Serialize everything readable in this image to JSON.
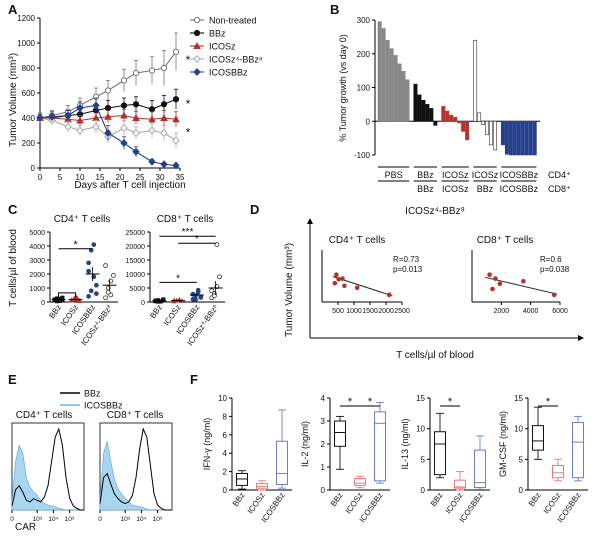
{
  "colors": {
    "nontreated": "#777777",
    "bbz": "#111111",
    "icosz": "#b5312b",
    "icosz4bbz8": "#aaaaaa",
    "icosbbz": "#26408b",
    "icoszLight": "#e87b7b",
    "icosbbzLight": "#6b7fc7",
    "histFill": "#a9d6ee",
    "histLine": "#67b7e3"
  },
  "panelA": {
    "letter": "A",
    "ylabel": "Tumor Volume (mm³)",
    "xlabel": "Days after T cell injection",
    "legend": [
      "Non-treated",
      "BBz",
      "ICOSz",
      "ICOSz⁴-BBz⁸",
      "ICOSBBz"
    ],
    "stars": [
      "*",
      "*",
      "*"
    ]
  },
  "panelB": {
    "letter": "B",
    "ylabel": "% Tumor growth (vs day 0)",
    "groups": [
      {
        "top": "PBS",
        "bottom": ""
      },
      {
        "top": "BBz",
        "bottom": "BBz"
      },
      {
        "top": "ICOSz",
        "bottom": "ICOSz"
      },
      {
        "top": "ICOSz",
        "bottom": "BBz"
      },
      {
        "top": "ICOSBBz",
        "bottom": "ICOSBBz"
      }
    ],
    "rowlabels": {
      "cd4": "CD4⁺",
      "cd8": "CD8⁺"
    }
  },
  "panelC": {
    "letter": "C",
    "ylabel": "T cells/µl of blood",
    "cd4_title": "CD4⁺ T cells",
    "cd8_title": "CD8⁺ T cells",
    "categories": [
      "BBz",
      "ICOSz",
      "ICOSBBz",
      "ICOSz⁴-BBz⁸"
    ],
    "cd4_stars": [
      "*"
    ],
    "cd8_stars": [
      "***",
      "*",
      "*"
    ]
  },
  "panelD": {
    "letter": "D",
    "title": "ICOSz⁴-BBz⁸",
    "ylabel": "Tumor Volume (mm³)",
    "xlabel": "T cells/µl of blood",
    "cd4_title": "CD4⁺ T cells",
    "cd8_title": "CD8⁺ T cells",
    "cd4_stats": {
      "r": "R=0.73",
      "p": "p=0.013"
    },
    "cd8_stats": {
      "r": "R=0.6",
      "p": "p=0.038"
    }
  },
  "panelE": {
    "letter": "E",
    "legend": [
      "BBz",
      "ICOSBBz"
    ],
    "cd4_title": "CD4⁺ T cells",
    "cd8_title": "CD8⁺ T cells",
    "xlabel": "CAR",
    "ticks": [
      "0",
      "10³",
      "10⁴",
      "10⁵"
    ]
  },
  "panelF": {
    "letter": "F",
    "categories": [
      "BBz",
      "ICOSz",
      "ICOSBBz"
    ],
    "stars": [
      "*",
      "*",
      "*",
      "*"
    ]
  },
  "chart_data": [
    {
      "panel": "A",
      "type": "line",
      "xlabel": "Days after T cell injection",
      "ylabel": "Tumor Volume (mm³)",
      "xlim": [
        0,
        35
      ],
      "ylim": [
        0,
        1200
      ],
      "xticks": [
        0,
        5,
        10,
        15,
        20,
        25,
        30,
        35
      ],
      "yticks": [
        0,
        200,
        400,
        600,
        800,
        1000,
        1200
      ],
      "series": [
        {
          "name": "Non-treated",
          "x": [
            0,
            3,
            7,
            10,
            14,
            17,
            21,
            24,
            28,
            31,
            34
          ],
          "y": [
            400,
            420,
            450,
            500,
            570,
            620,
            700,
            760,
            780,
            800,
            930
          ],
          "err": [
            40,
            40,
            50,
            60,
            70,
            80,
            90,
            100,
            110,
            140,
            150
          ]
        },
        {
          "name": "BBz",
          "x": [
            0,
            3,
            7,
            10,
            14,
            17,
            21,
            24,
            28,
            31,
            34
          ],
          "y": [
            400,
            400,
            420,
            430,
            460,
            480,
            500,
            510,
            470,
            510,
            550
          ],
          "err": [
            30,
            30,
            40,
            40,
            50,
            60,
            60,
            60,
            70,
            70,
            80
          ]
        },
        {
          "name": "ICOSz",
          "x": [
            0,
            3,
            7,
            10,
            14,
            17,
            21,
            24,
            28,
            31,
            34
          ],
          "y": [
            400,
            400,
            390,
            380,
            400,
            410,
            420,
            400,
            390,
            400,
            390
          ],
          "err": [
            30,
            30,
            40,
            40,
            40,
            50,
            50,
            50,
            60,
            60,
            60
          ]
        },
        {
          "name": "ICOSz⁴-BBz⁸",
          "x": [
            0,
            3,
            7,
            10,
            14,
            17,
            21,
            24,
            28,
            31,
            34
          ],
          "y": [
            400,
            380,
            330,
            300,
            330,
            250,
            320,
            280,
            300,
            280,
            220
          ],
          "err": [
            30,
            30,
            40,
            40,
            50,
            50,
            60,
            50,
            60,
            60,
            60
          ]
        },
        {
          "name": "ICOSBBz",
          "x": [
            0,
            3,
            7,
            10,
            14,
            17,
            21,
            24,
            28,
            31,
            34
          ],
          "y": [
            400,
            410,
            420,
            480,
            500,
            280,
            200,
            130,
            50,
            30,
            20
          ],
          "err": [
            30,
            40,
            40,
            50,
            60,
            60,
            50,
            40,
            20,
            15,
            10
          ]
        }
      ],
      "annotations": [
        "*",
        "*",
        "*"
      ]
    },
    {
      "panel": "B",
      "type": "bar",
      "ylabel": "% Tumor growth (vs day 0)",
      "ylim": [
        -100,
        300
      ],
      "yticks": [
        -100,
        0,
        100,
        200,
        300
      ],
      "groups": [
        {
          "name": "PBS",
          "values": [
            295,
            275,
            240,
            215,
            195,
            170,
            148,
            123
          ],
          "color": "#888888"
        },
        {
          "name": "BBz / BBz",
          "values": [
            110,
            78,
            62,
            50,
            38,
            -12
          ],
          "color": "#111111"
        },
        {
          "name": "ICOSz / ICOSz",
          "values": [
            44,
            30,
            18,
            12,
            -5,
            -30,
            -55
          ],
          "color": "#b5312b"
        },
        {
          "name": "ICOSz / BBz",
          "values": [
            240,
            25,
            -10,
            -40,
            -70,
            -85
          ],
          "color": "#ffffff"
        },
        {
          "name": "ICOSBBz / ICOSBBz",
          "values": [
            -70,
            -98,
            -100,
            -100,
            -100,
            -100,
            -100,
            -100,
            -100
          ],
          "color": "#26408b"
        }
      ]
    },
    {
      "panel": "C",
      "type": "scatter",
      "title": "CD4⁺ T cells",
      "ylabel": "T cells/µl of blood",
      "categories": [
        "BBz",
        "ICOSz",
        "ICOSBBz",
        "ICOSz⁴-BBz⁸"
      ],
      "yticks": [
        0,
        1000,
        2000,
        3000,
        4000,
        5000
      ],
      "ylim": [
        0,
        5000
      ],
      "points": [
        [
          120,
          250,
          80,
          300,
          180,
          60,
          210,
          140
        ],
        [
          100,
          180,
          320,
          60,
          140,
          250,
          200,
          90
        ],
        [
          400,
          800,
          1800,
          1200,
          2800,
          3700,
          4100,
          600,
          2200
        ],
        [
          300,
          700,
          1500,
          1900,
          2600,
          1000,
          500
        ]
      ],
      "mean": [
        170,
        170,
        2000,
        1200
      ],
      "sem": [
        40,
        30,
        500,
        400
      ]
    },
    {
      "panel": "C",
      "type": "scatter",
      "title": "CD8⁺ T cells",
      "ylabel": "T cells/µl of blood",
      "categories": [
        "BBz",
        "ICOSz",
        "ICOSBBz",
        "ICOSz⁴-BBz⁸"
      ],
      "yticks": [
        0,
        5000,
        10000,
        15000,
        20000,
        25000
      ],
      "ylim": [
        0,
        25000
      ],
      "points": [
        [
          300,
          600,
          200,
          900,
          450,
          150
        ],
        [
          200,
          500,
          800,
          350,
          650
        ],
        [
          1000,
          2300,
          3500,
          1600,
          2800,
          900,
          4200,
          1800
        ],
        [
          1500,
          3000,
          5500,
          9000,
          4000,
          2200,
          20500
        ]
      ],
      "mean": [
        430,
        500,
        2500,
        5000
      ],
      "sem": [
        120,
        100,
        400,
        2500
      ]
    },
    {
      "panel": "D",
      "type": "scatter",
      "title": "CD4⁺ T cells",
      "xlim": [
        0,
        2500
      ],
      "ylim": [
        0,
        800
      ],
      "xticks": [
        500,
        1000,
        1500,
        2000,
        2500
      ],
      "points": [
        {
          "x": 450,
          "y": 420
        },
        {
          "x": 520,
          "y": 350
        },
        {
          "x": 640,
          "y": 360
        },
        {
          "x": 700,
          "y": 250
        },
        {
          "x": 400,
          "y": 290
        },
        {
          "x": 1100,
          "y": 220
        },
        {
          "x": 2100,
          "y": 110
        }
      ],
      "fit": [
        {
          "x": 350,
          "y": 390
        },
        {
          "x": 2200,
          "y": 95
        }
      ],
      "stats": "R=0.73, p=0.013"
    },
    {
      "panel": "D",
      "type": "scatter",
      "title": "CD8⁺ T cells",
      "xlim": [
        0,
        6000
      ],
      "ylim": [
        0,
        800
      ],
      "xticks": [
        2000,
        4000,
        6000
      ],
      "points": [
        {
          "x": 1200,
          "y": 420
        },
        {
          "x": 1600,
          "y": 360
        },
        {
          "x": 1900,
          "y": 280
        },
        {
          "x": 1400,
          "y": 200
        },
        {
          "x": 3500,
          "y": 320
        },
        {
          "x": 5600,
          "y": 110
        }
      ],
      "fit": [
        {
          "x": 900,
          "y": 380
        },
        {
          "x": 5800,
          "y": 120
        }
      ],
      "stats": "R=0.6, p=0.038"
    },
    {
      "panel": "E",
      "type": "area",
      "title": "CAR histograms",
      "xlabel": "CAR",
      "series": [
        {
          "name": "BBz",
          "plot": "CD4⁺ T cells",
          "x": [
            0,
            1,
            2,
            3,
            4,
            5,
            6,
            7,
            8,
            9,
            10,
            11,
            12,
            13,
            14,
            15,
            16,
            17,
            18,
            19,
            20
          ],
          "y": [
            5,
            25,
            30,
            22,
            12,
            10,
            14,
            12,
            10,
            16,
            30,
            60,
            90,
            100,
            80,
            40,
            15,
            5,
            2,
            0,
            0
          ]
        },
        {
          "name": "ICOSBBz",
          "plot": "CD4⁺ T cells",
          "x": [
            0,
            1,
            2,
            3,
            4,
            5,
            6,
            7,
            8,
            9,
            10,
            11,
            12,
            13,
            14,
            15,
            16,
            17,
            18,
            19,
            20
          ],
          "y": [
            10,
            60,
            80,
            70,
            40,
            28,
            22,
            18,
            12,
            8,
            6,
            5,
            4,
            2,
            1,
            0,
            0,
            0,
            0,
            0,
            0
          ]
        },
        {
          "name": "BBz",
          "plot": "CD8⁺ T cells",
          "x": [
            0,
            1,
            2,
            3,
            4,
            5,
            6,
            7,
            8,
            9,
            10,
            11,
            12,
            13,
            14,
            15,
            16,
            17,
            18,
            19,
            20
          ],
          "y": [
            8,
            40,
            45,
            32,
            20,
            14,
            10,
            8,
            10,
            18,
            40,
            75,
            100,
            90,
            55,
            20,
            6,
            2,
            0,
            0,
            0
          ]
        },
        {
          "name": "ICOSBBz",
          "plot": "CD8⁺ T cells",
          "x": [
            0,
            1,
            2,
            3,
            4,
            5,
            6,
            7,
            8,
            9,
            10,
            11,
            12,
            13,
            14,
            15,
            16,
            17,
            18,
            19,
            20
          ],
          "y": [
            12,
            70,
            85,
            60,
            38,
            26,
            20,
            14,
            10,
            6,
            5,
            4,
            3,
            1,
            0,
            0,
            0,
            0,
            0,
            0,
            0
          ]
        }
      ]
    },
    {
      "panel": "F",
      "type": "box",
      "ylabel": "IFN-γ (ng/ml)",
      "ylim": [
        0,
        10
      ],
      "yticks": [
        0,
        2,
        4,
        6,
        8,
        10
      ],
      "categories": [
        "BBz",
        "ICOSz",
        "ICOSBBz"
      ],
      "boxes": [
        {
          "min": 0.1,
          "q1": 0.5,
          "median": 1.2,
          "q3": 1.8,
          "max": 2.1
        },
        {
          "min": 0.0,
          "q1": 0.2,
          "median": 0.4,
          "q3": 0.7,
          "max": 1.0
        },
        {
          "min": 0.2,
          "q1": 0.6,
          "median": 1.8,
          "q3": 5.3,
          "max": 8.7
        }
      ]
    },
    {
      "panel": "F",
      "type": "box",
      "ylabel": "IL-2 (ng/ml)",
      "ylim": [
        0,
        4
      ],
      "yticks": [
        0,
        1,
        2,
        3,
        4
      ],
      "categories": [
        "BBz",
        "ICOSz",
        "ICOSBBz"
      ],
      "boxes": [
        {
          "min": 0.9,
          "q1": 1.9,
          "median": 2.5,
          "q3": 3.0,
          "max": 3.2
        },
        {
          "min": 0.1,
          "q1": 0.2,
          "median": 0.3,
          "q3": 0.5,
          "max": 0.6
        },
        {
          "min": 0.3,
          "q1": 0.4,
          "median": 2.9,
          "q3": 3.4,
          "max": 3.8
        }
      ],
      "annotations": [
        "*",
        "*"
      ]
    },
    {
      "panel": "F",
      "type": "box",
      "ylabel": "IL-13 (ng/ml)",
      "ylim": [
        0,
        15
      ],
      "yticks": [
        0,
        5,
        10,
        15
      ],
      "categories": [
        "BBz",
        "ICOSz",
        "ICOSBBz"
      ],
      "boxes": [
        {
          "min": 2.0,
          "q1": 2.5,
          "median": 7.5,
          "q3": 9.5,
          "max": 12.5
        },
        {
          "min": 0.0,
          "q1": 0.3,
          "median": 0.5,
          "q3": 1.6,
          "max": 3.0
        },
        {
          "min": 0.1,
          "q1": 0.4,
          "median": 1.2,
          "q3": 6.5,
          "max": 8.8
        }
      ],
      "annotations": [
        "*"
      ]
    },
    {
      "panel": "F",
      "type": "box",
      "ylabel": "GM-CSF (ng/ml)",
      "ylim": [
        0,
        15
      ],
      "yticks": [
        0,
        5,
        10,
        15
      ],
      "categories": [
        "BBz",
        "ICOSz",
        "ICOSBBz"
      ],
      "boxes": [
        {
          "min": 5.0,
          "q1": 6.5,
          "median": 8.0,
          "q3": 10.5,
          "max": 13.5
        },
        {
          "min": 1.5,
          "q1": 2.0,
          "median": 2.8,
          "q3": 4.0,
          "max": 5.0
        },
        {
          "min": 1.5,
          "q1": 2.0,
          "median": 7.8,
          "q3": 11.0,
          "max": 12.0
        }
      ],
      "annotations": [
        "*"
      ]
    }
  ]
}
